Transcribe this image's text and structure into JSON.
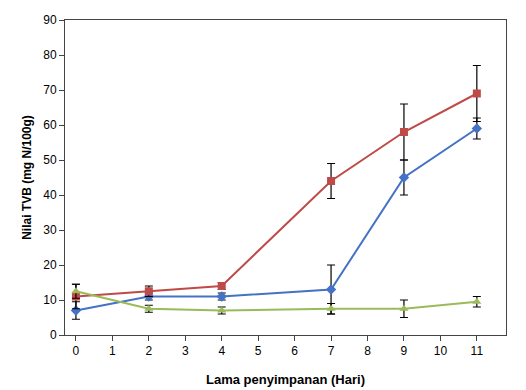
{
  "chart_data": {
    "type": "line",
    "xlabel": "Lama penyimpanan (Hari)",
    "ylabel": "Nilai TVB (mg N/100g)",
    "x": [
      0,
      2,
      4,
      7,
      9,
      11
    ],
    "series": [
      {
        "color": "#4472C4",
        "marker": "diamond",
        "values": [
          7.0,
          11.0,
          11.0,
          13.0,
          45.0,
          59.0
        ],
        "errors": [
          2.5,
          1.0,
          1.0,
          7.0,
          5.0,
          3.0
        ]
      },
      {
        "color": "#BE4B48",
        "marker": "square",
        "values": [
          11.0,
          12.5,
          14.0,
          44.0,
          58.0,
          69.0
        ],
        "errors": [
          3.5,
          1.5,
          1.0,
          5.0,
          8.0,
          8.0
        ]
      },
      {
        "color": "#9BBB59",
        "marker": "triangle",
        "values": [
          12.5,
          7.5,
          7.0,
          7.5,
          7.5,
          9.5
        ],
        "errors": [
          2.0,
          1.0,
          1.0,
          1.5,
          2.5,
          1.5
        ]
      }
    ],
    "xlim": [
      -0.3,
      11.8
    ],
    "ylim": [
      0,
      90
    ],
    "xticks": [
      0,
      1,
      2,
      3,
      4,
      5,
      6,
      7,
      8,
      9,
      10,
      11
    ],
    "yticks": [
      0,
      10,
      20,
      30,
      40,
      50,
      60,
      70,
      80,
      90
    ],
    "grid": false
  }
}
